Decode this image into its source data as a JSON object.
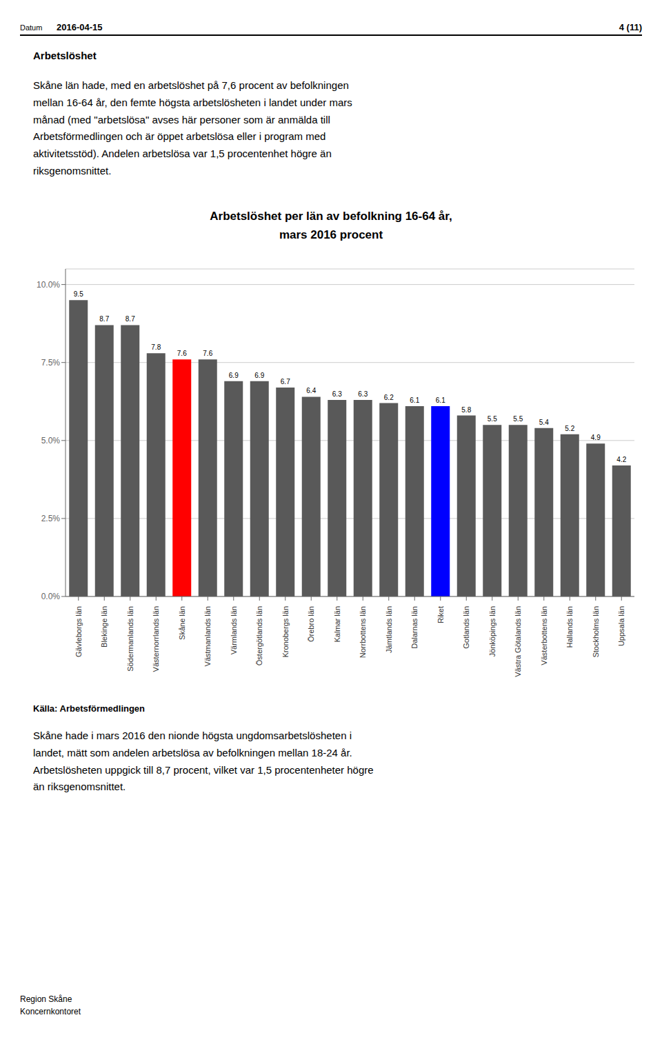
{
  "chart_data": {
    "type": "bar",
    "title": "Arbetslöshet per län av befolkning 16-64 år,\nmars 2016 procent",
    "categories": [
      "Gävleborgs län",
      "Blekinge län",
      "Södermanlands län",
      "Västernorrlands län",
      "Skåne län",
      "Västmanlands län",
      "Värmlands län",
      "Östergötlands län",
      "Kronobergs län",
      "Örebro län",
      "Kalmar län",
      "Norrbottens län",
      "Jämtlands län",
      "Dalarnas län",
      "Riket",
      "Gotlands län",
      "Jönköpings län",
      "Västra Götalands län",
      "Västerbottens län",
      "Hallands län",
      "Stockholms län",
      "Uppsala län"
    ],
    "values": [
      9.5,
      8.7,
      8.7,
      7.8,
      7.6,
      7.6,
      6.9,
      6.9,
      6.7,
      6.4,
      6.3,
      6.3,
      6.2,
      6.1,
      6.1,
      5.8,
      5.5,
      5.5,
      5.4,
      5.2,
      4.9,
      4.2
    ],
    "colors": [
      "#595959",
      "#595959",
      "#595959",
      "#595959",
      "#FF0000",
      "#595959",
      "#595959",
      "#595959",
      "#595959",
      "#595959",
      "#595959",
      "#595959",
      "#595959",
      "#595959",
      "#0000FF",
      "#595959",
      "#595959",
      "#595959",
      "#595959",
      "#595959",
      "#595959",
      "#595959"
    ],
    "ylim": [
      0,
      10.5
    ],
    "yticks": [
      {
        "value": 0,
        "label": "0.0%"
      },
      {
        "value": 2.5,
        "label": "2.5%"
      },
      {
        "value": 5,
        "label": "5.0%"
      },
      {
        "value": 7.5,
        "label": "7.5%"
      },
      {
        "value": 10,
        "label": "10.0%"
      }
    ],
    "grid": true,
    "data_labels": true,
    "annotations": [
      "Datum",
      "2016-04-15",
      "4 (11)",
      "Arbetslöshet",
      "Skåne län hade, med en arbetslöshet på 7,6 procent av befolkningen\nmellan 16-64 år, den femte högsta arbetslösheten i landet under mars\nmånad (med \"arbetslösa\" avses här personer som är anmälda till\nArbetsförmedlingen och är öppet arbetslösa eller i program med\naktivitetsstöd). Andelen arbetslösa var 1,5 procentenhet högre än\nriksgenomsnittet.",
      "Källa: Arbetsförmedlingen",
      "Skåne hade i mars 2016 den nionde högsta ungdomsarbetslösheten i\nlandet, mätt som andelen arbetslösa av befolkningen mellan 18-24 år.\nArbetslösheten uppgick till 8,7 procent, vilket var 1,5 procentenheter högre\nän riksgenomsnittet.",
      "Region Skåne\nKoncernkontoret"
    ]
  }
}
